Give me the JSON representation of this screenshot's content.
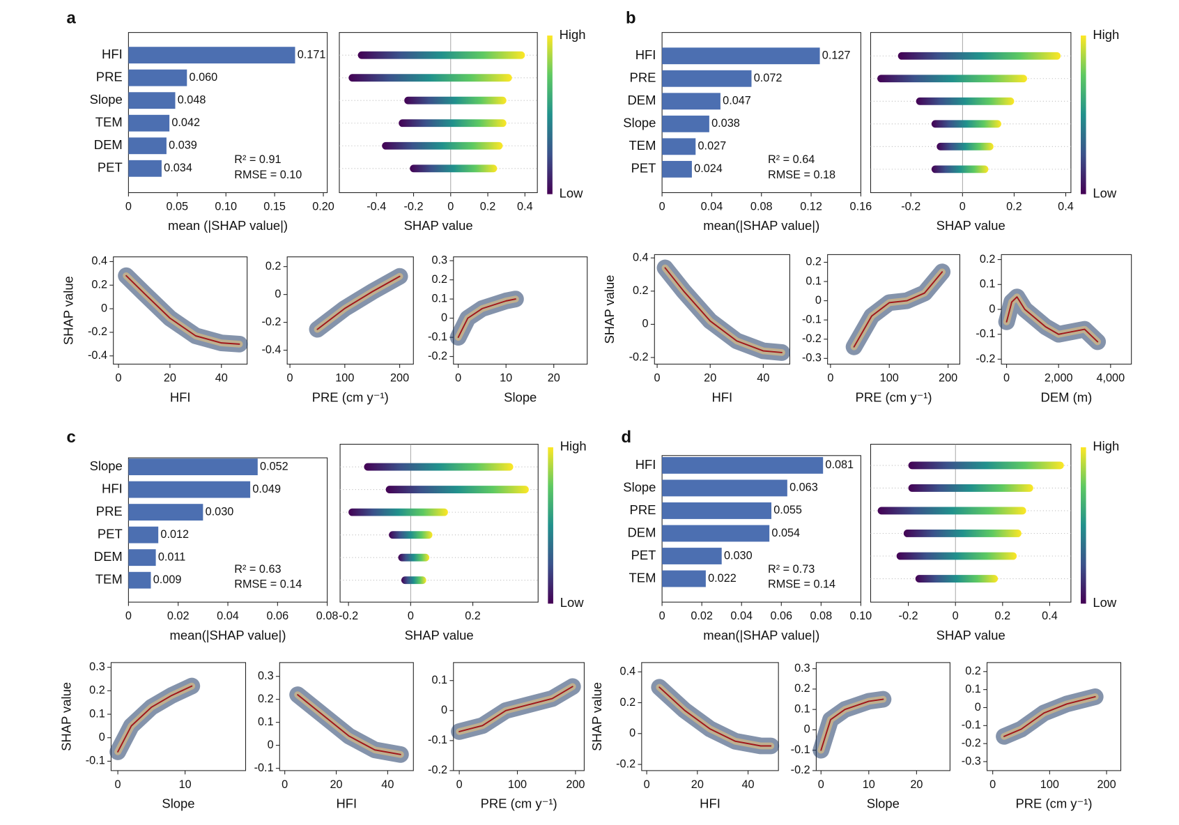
{
  "chart_data": [
    {
      "type": "bar",
      "panel_label": "a",
      "categories": [
        "HFI",
        "PRE",
        "Slope",
        "TEM",
        "DEM",
        "PET"
      ],
      "values": [
        0.171,
        0.06,
        0.048,
        0.042,
        0.039,
        0.034
      ],
      "value_labels": [
        "0.171",
        "0.060",
        "0.048",
        "0.042",
        "0.039",
        "0.034"
      ],
      "color": "#4c6fb1",
      "xlim": [
        0,
        0.204
      ],
      "xticks": [
        0,
        0.05,
        {
          "value": 0.1,
          "label": "0.10"
        },
        0.15,
        {
          "value": 0.2,
          "label": "0.20"
        }
      ],
      "xlabel": "mean (|SHAP value|)",
      "annotations": [
        "R² = 0.91",
        "RMSE = 0.10"
      ]
    },
    {
      "type": "beeswarm",
      "ranges": [
        [
          -0.5,
          0.4
        ],
        [
          -0.55,
          0.33
        ],
        [
          -0.25,
          0.3
        ],
        [
          -0.28,
          0.3
        ],
        [
          -0.37,
          0.28
        ],
        [
          -0.22,
          0.25
        ]
      ],
      "xlim": [
        -0.6,
        0.467
      ],
      "xticks": [
        -0.4,
        -0.2,
        0,
        0.2,
        0.4
      ],
      "xlabel": "SHAP value",
      "colorbar_high": "High",
      "colorbar_low": "Low"
    },
    {
      "type": "line",
      "x": [
        3,
        10,
        20,
        30,
        40,
        47
      ],
      "values": [
        0.28,
        0.13,
        -0.08,
        -0.23,
        -0.29,
        -0.3
      ],
      "color": "#a0161b",
      "xlim": [
        -2,
        50
      ],
      "xticks": [
        0,
        20,
        40
      ],
      "ylim": [
        -0.47,
        0.44
      ],
      "yticks": [
        -0.4,
        -0.2,
        0,
        0.2,
        0.4
      ],
      "xlabel": "HFI",
      "ylabel": "SHAP value"
    },
    {
      "type": "line",
      "x": [
        50,
        100,
        150,
        200
      ],
      "values": [
        -0.25,
        -0.1,
        0.02,
        0.13
      ],
      "color": "#a0161b",
      "xlim": [
        -5,
        225
      ],
      "xticks": [
        0,
        100,
        200
      ],
      "ylim": [
        -0.5,
        0.27
      ],
      "yticks": [
        -0.4,
        -0.2,
        0,
        0.2
      ],
      "xlabel": "PRE (cm y⁻¹)"
    },
    {
      "type": "line",
      "x": [
        0,
        2,
        5,
        10,
        12
      ],
      "values": [
        -0.1,
        0,
        0.05,
        0.09,
        0.1
      ],
      "color": "#a0161b",
      "xlim": [
        -1,
        27
      ],
      "xticks": [
        0,
        10,
        20
      ],
      "ylim": [
        -0.24,
        0.32
      ],
      "yticks": [
        -0.2,
        -0.1,
        0,
        0.1,
        0.2,
        0.3
      ],
      "xlabel": "Slope"
    },
    {
      "type": "bar",
      "panel_label": "b",
      "categories": [
        "HFI",
        "PRE",
        "DEM",
        "Slope",
        "TEM",
        "PET"
      ],
      "values": [
        0.127,
        0.072,
        0.047,
        0.038,
        0.027,
        0.024
      ],
      "color": "#4c6fb1",
      "xlim": [
        0,
        0.16
      ],
      "xticks": [
        0,
        0.04,
        0.08,
        0.12,
        0.16
      ],
      "xlabel": "mean(|SHAP value|)",
      "annotations": [
        "R² = 0.64",
        "RMSE = 0.18"
      ]
    },
    {
      "type": "beeswarm",
      "ranges": [
        [
          -0.25,
          0.38
        ],
        [
          -0.33,
          0.25
        ],
        [
          -0.18,
          0.2
        ],
        [
          -0.12,
          0.15
        ],
        [
          -0.1,
          0.12
        ],
        [
          -0.12,
          0.1
        ]
      ],
      "xlim": [
        -0.356,
        0.42
      ],
      "xticks": [
        -0.2,
        0,
        0.2,
        0.4
      ],
      "xlabel": "SHAP value",
      "colorbar_high": "High",
      "colorbar_low": "Low"
    },
    {
      "type": "line",
      "x": [
        3,
        10,
        20,
        30,
        40,
        47
      ],
      "values": [
        0.34,
        0.2,
        0.02,
        -0.1,
        -0.16,
        -0.17
      ],
      "color": "#a0161b",
      "xlim": [
        -1,
        50
      ],
      "xticks": [
        0,
        20,
        40
      ],
      "ylim": [
        -0.24,
        0.42
      ],
      "yticks": [
        -0.2,
        0,
        0.2,
        0.4
      ],
      "xlabel": "HFI",
      "ylabel": "SHAP value"
    },
    {
      "type": "line",
      "x": [
        40,
        70,
        100,
        130,
        160,
        190
      ],
      "values": [
        -0.24,
        -0.08,
        -0.01,
        0,
        0.04,
        0.15
      ],
      "color": "#a0161b",
      "xlim": [
        -5,
        220
      ],
      "xticks": [
        0,
        100,
        200
      ],
      "ylim": [
        -0.33,
        0.24
      ],
      "yticks": [
        -0.3,
        -0.2,
        -0.1,
        0,
        0.1,
        0.2
      ],
      "xlabel": "PRE (cm y⁻¹)"
    },
    {
      "type": "line",
      "x": [
        0,
        200,
        400,
        700,
        1500,
        2000,
        3000,
        3500
      ],
      "values": [
        -0.05,
        0.03,
        0.05,
        0,
        -0.07,
        -0.1,
        -0.08,
        -0.13
      ],
      "color": "#a0161b",
      "xlim": [
        -200,
        4800
      ],
      "xticks": [
        0,
        {
          "value": 2000,
          "label": "2,000"
        },
        {
          "value": 4000,
          "label": "4,000"
        }
      ],
      "ylim": [
        -0.22,
        0.22
      ],
      "yticks": [
        -0.2,
        -0.1,
        0,
        0.1,
        0.2
      ],
      "xlabel": "DEM (m)"
    },
    {
      "type": "bar",
      "panel_label": "c",
      "categories": [
        "Slope",
        "HFI",
        "PRE",
        "PET",
        "DEM",
        "TEM"
      ],
      "values": [
        0.052,
        0.049,
        0.03,
        0.012,
        0.011,
        0.009
      ],
      "value_labels": [
        "0.052",
        "0.049",
        "0.030",
        "0.012",
        "0.011",
        "0.009"
      ],
      "color": "#4c6fb1",
      "xlim": [
        0,
        0.08
      ],
      "xticks": [
        0,
        0.02,
        0.04,
        0.06,
        0.08
      ],
      "xlabel": "mean(|SHAP value|)",
      "annotations": [
        "R² = 0.63",
        "RMSE = 0.14"
      ]
    },
    {
      "type": "beeswarm",
      "ranges": [
        [
          -0.15,
          0.33
        ],
        [
          -0.08,
          0.38
        ],
        [
          -0.2,
          0.12
        ],
        [
          -0.07,
          0.07
        ],
        [
          -0.04,
          0.06
        ],
        [
          -0.03,
          0.05
        ]
      ],
      "xlim": [
        -0.227,
        0.41
      ],
      "xticks": [
        -0.2,
        0,
        0.2
      ],
      "xlabel": "SHAP value",
      "colorbar_high": "High",
      "colorbar_low": "Low"
    },
    {
      "type": "line",
      "x": [
        0,
        2,
        5,
        8,
        11
      ],
      "values": [
        -0.06,
        0.05,
        0.13,
        0.18,
        0.22
      ],
      "color": "#a0161b",
      "xlim": [
        -1,
        19
      ],
      "xticks": [
        0,
        10
      ],
      "ylim": [
        -0.14,
        0.32
      ],
      "yticks": [
        -0.1,
        0,
        0.1,
        0.2,
        0.3
      ],
      "xlabel": "Slope",
      "ylabel": "SHAP value"
    },
    {
      "type": "line",
      "x": [
        5,
        15,
        25,
        35,
        45
      ],
      "values": [
        0.22,
        0.13,
        0.04,
        -0.02,
        -0.04
      ],
      "color": "#a0161b",
      "xlim": [
        -2,
        50
      ],
      "xticks": [
        0,
        20,
        40
      ],
      "ylim": [
        -0.11,
        0.36
      ],
      "yticks": [
        -0.1,
        0,
        0.1,
        0.2,
        0.3
      ],
      "xlabel": "HFI"
    },
    {
      "type": "line",
      "x": [
        0,
        40,
        80,
        120,
        160,
        195
      ],
      "values": [
        -0.07,
        -0.05,
        0,
        0.02,
        0.04,
        0.08
      ],
      "color": "#a0161b",
      "xlim": [
        -10,
        215
      ],
      "xticks": [
        0,
        100,
        200
      ],
      "ylim": [
        -0.2,
        0.16
      ],
      "yticks": [
        -0.2,
        -0.1,
        0,
        0.1
      ],
      "xlabel": "PRE (cm y⁻¹)"
    },
    {
      "type": "bar",
      "panel_label": "d",
      "categories": [
        "HFI",
        "Slope",
        "PRE",
        "DEM",
        "PET",
        "TEM"
      ],
      "values": [
        0.081,
        0.063,
        0.055,
        0.054,
        0.03,
        0.022
      ],
      "value_labels": [
        "0.081",
        "0.063",
        "0.055",
        "0.054",
        "0.030",
        "0.022"
      ],
      "color": "#4c6fb1",
      "xlim": [
        0,
        0.1
      ],
      "xticks": [
        0,
        0.02,
        0.04,
        0.06,
        0.08,
        {
          "value": 0.1,
          "label": "0.10"
        }
      ],
      "xlabel": "mean(|SHAP value|)",
      "annotations": [
        "R² = 0.73",
        "RMSE = 0.14"
      ]
    },
    {
      "type": "beeswarm",
      "ranges": [
        [
          -0.2,
          0.46
        ],
        [
          -0.2,
          0.33
        ],
        [
          -0.33,
          0.3
        ],
        [
          -0.22,
          0.28
        ],
        [
          -0.25,
          0.26
        ],
        [
          -0.17,
          0.18
        ]
      ],
      "xlim": [
        -0.36,
        0.49
      ],
      "xticks": [
        -0.2,
        0,
        0.2,
        0.4
      ],
      "xlabel": "SHAP value",
      "colorbar_high": "High",
      "colorbar_low": "Low"
    },
    {
      "type": "line",
      "x": [
        5,
        15,
        25,
        35,
        45,
        49
      ],
      "values": [
        0.3,
        0.15,
        0.03,
        -0.05,
        -0.08,
        -0.08
      ],
      "color": "#a0161b",
      "xlim": [
        -2,
        52
      ],
      "xticks": [
        0,
        20,
        40
      ],
      "ylim": [
        -0.24,
        0.46
      ],
      "yticks": [
        -0.2,
        0,
        0.2,
        0.4
      ],
      "xlabel": "HFI",
      "ylabel": "SHAP value"
    },
    {
      "type": "line",
      "x": [
        0,
        2,
        5,
        10,
        13
      ],
      "values": [
        -0.1,
        0.05,
        0.1,
        0.14,
        0.15
      ],
      "color": "#a0161b",
      "xlim": [
        -1,
        27
      ],
      "xticks": [
        0,
        10,
        20
      ],
      "ylim": [
        -0.2,
        0.33
      ],
      "yticks": [
        -0.2,
        -0.1,
        0,
        0.1,
        0.2,
        0.3
      ],
      "xlabel": "Slope"
    },
    {
      "type": "line",
      "x": [
        20,
        50,
        90,
        130,
        180
      ],
      "values": [
        -0.16,
        -0.12,
        -0.03,
        0.02,
        0.06
      ],
      "color": "#a0161b",
      "xlim": [
        -10,
        225
      ],
      "xticks": [
        0,
        100,
        200
      ],
      "ylim": [
        -0.35,
        0.25
      ],
      "yticks": [
        -0.3,
        -0.2,
        -0.1,
        0,
        0.1,
        0.2
      ],
      "xlabel": "PRE (cm y⁻¹)"
    }
  ]
}
